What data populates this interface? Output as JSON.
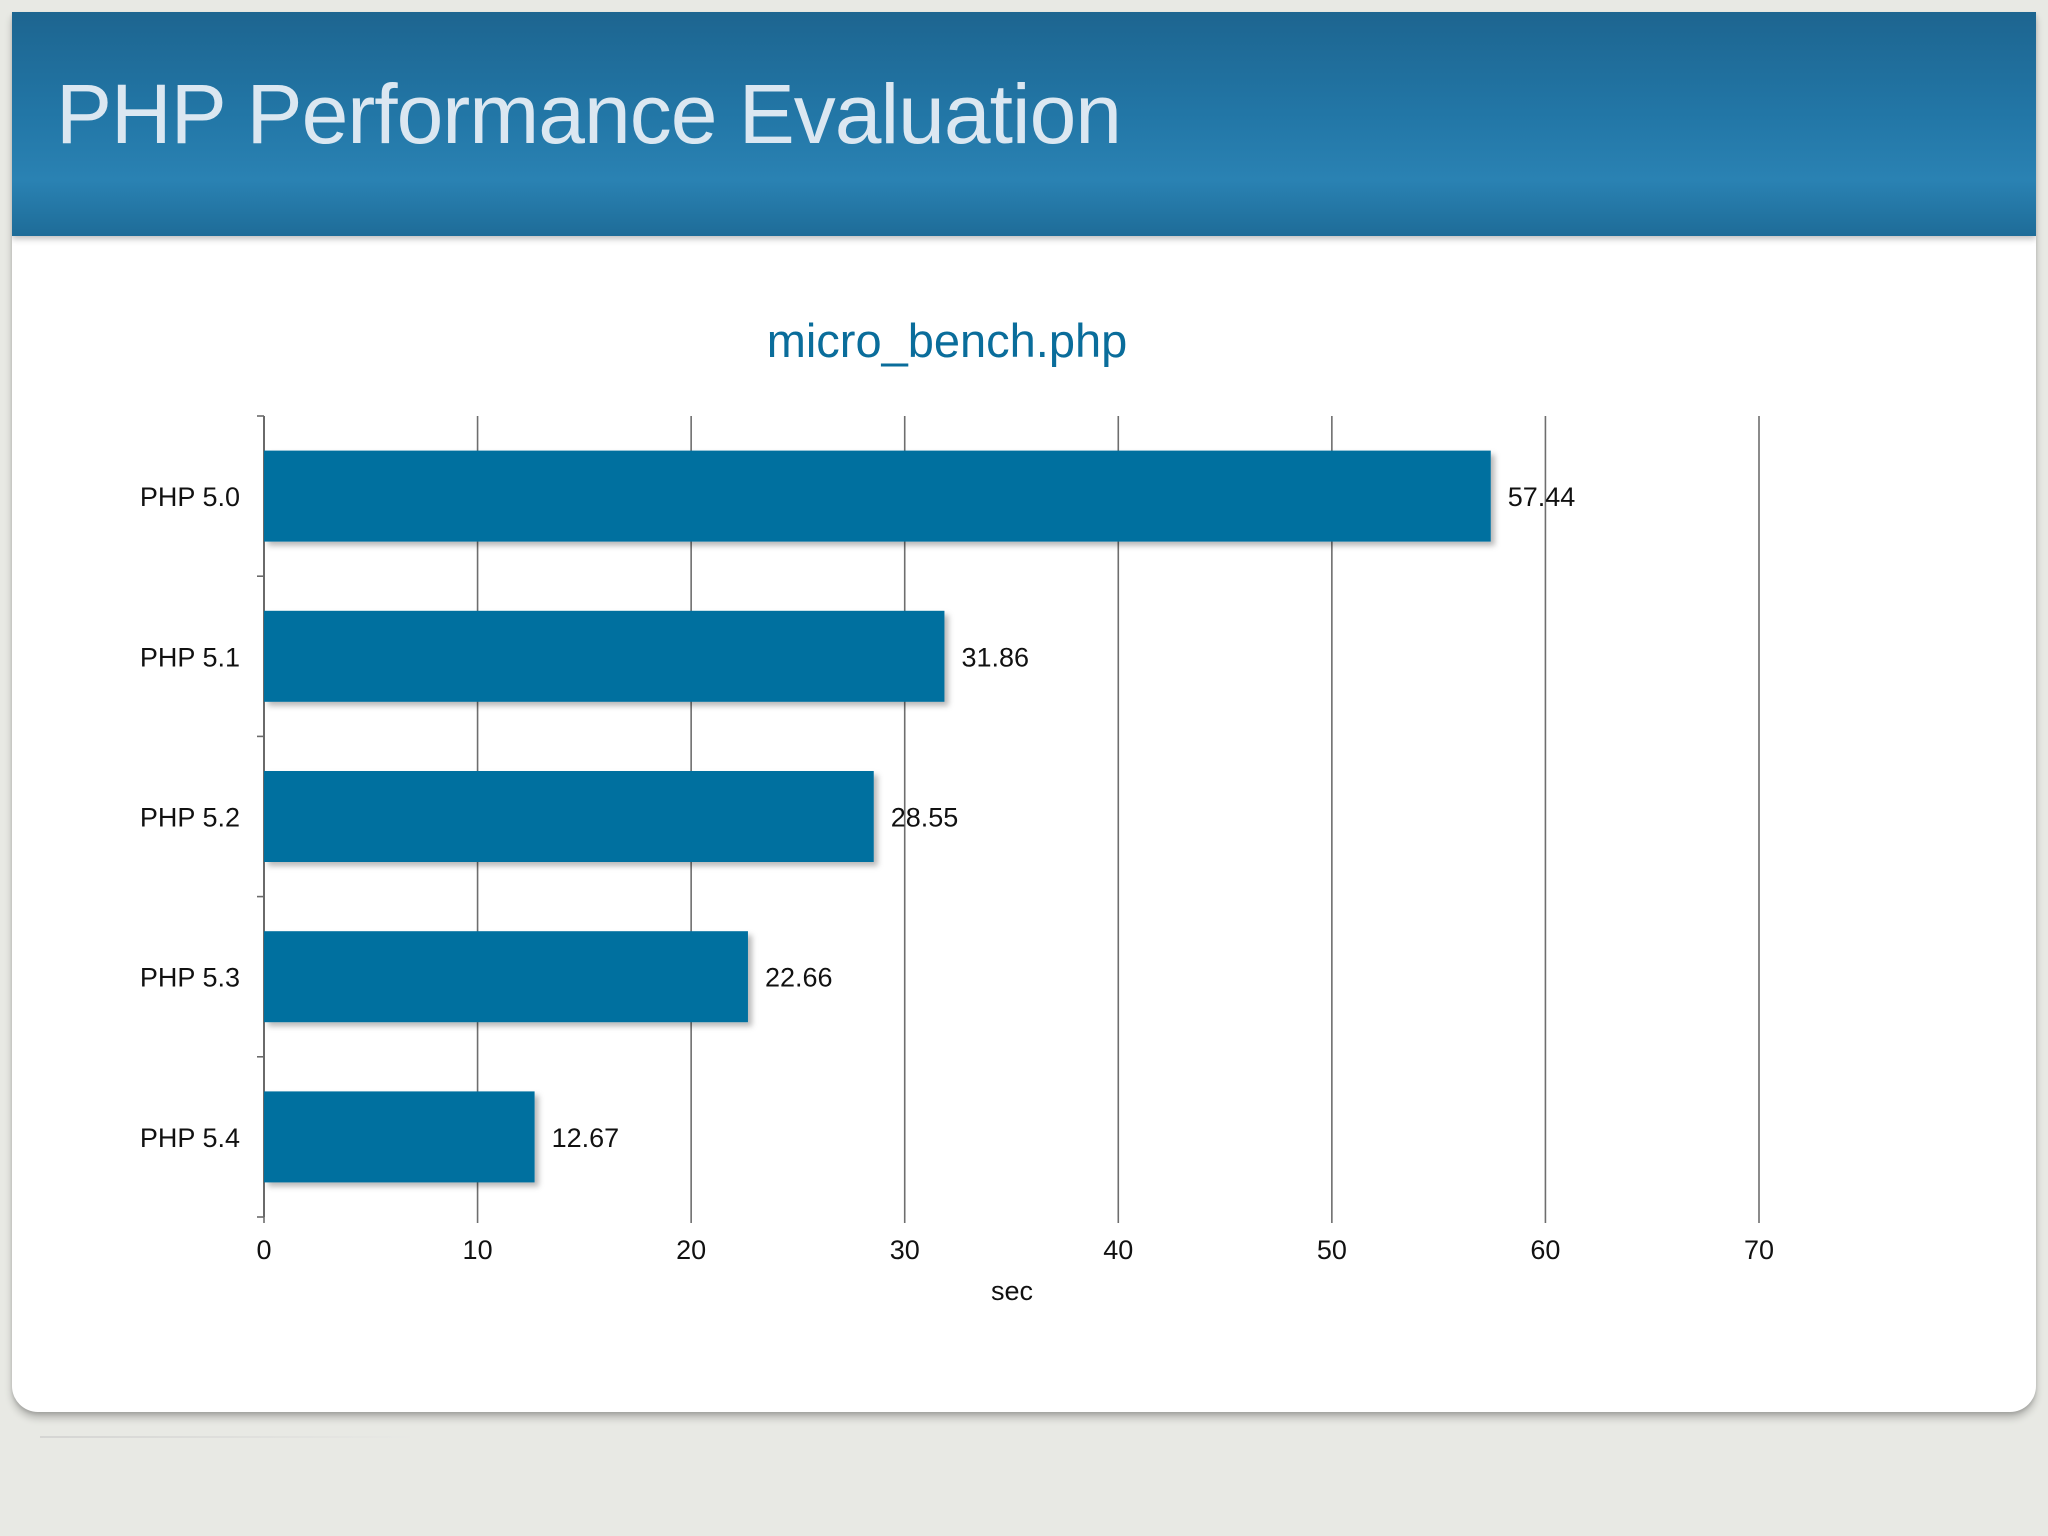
{
  "slide": {
    "title": "PHP Performance Evaluation"
  },
  "colors": {
    "bar": "#05709f",
    "chart_title": "#0a6d9b",
    "gridline": "#6e6e6e"
  },
  "chart_data": {
    "type": "bar",
    "orientation": "horizontal",
    "title": "micro_bench.php",
    "categories": [
      "PHP 5.0",
      "PHP 5.1",
      "PHP 5.2",
      "PHP 5.3",
      "PHP 5.4"
    ],
    "values": [
      57.44,
      31.86,
      28.55,
      22.66,
      12.67
    ],
    "value_labels": [
      "57.44",
      "31.86",
      "28.55",
      "22.66",
      "12.67"
    ],
    "xlabel": "sec",
    "ylabel": "",
    "xlim": [
      0,
      70
    ],
    "xticks": [
      0,
      10,
      20,
      30,
      40,
      50,
      60,
      70
    ],
    "grid": true,
    "legend": "none"
  }
}
